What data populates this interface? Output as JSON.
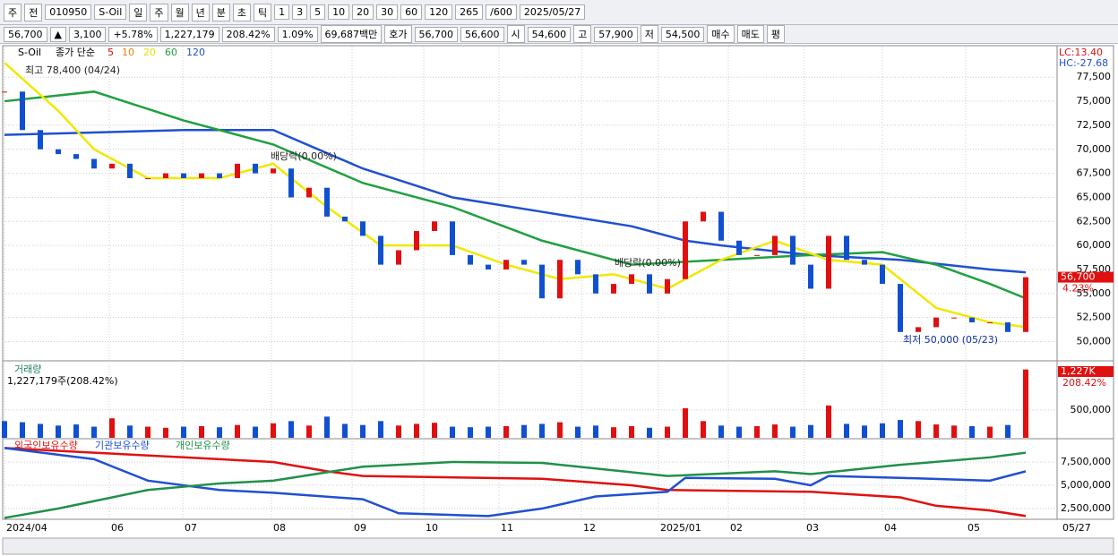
{
  "toolbar": {
    "items": [
      "주",
      "전",
      "010950",
      "S-Oil",
      "일",
      "주",
      "월",
      "년",
      "분",
      "초",
      "틱",
      "1",
      "3",
      "5",
      "10",
      "20",
      "30",
      "60",
      "120",
      "265",
      "/600",
      "2025/05/27"
    ]
  },
  "quote": {
    "items": [
      "56,700",
      "▲",
      "3,100",
      "+5.78%",
      "1,227,179",
      "208.42%",
      "1.09%",
      "69,687백만",
      "호가",
      "56,700",
      "56,600",
      "시",
      "54,600",
      "고",
      "57,900",
      "저",
      "54,500",
      "매수",
      "매도",
      "평"
    ]
  },
  "x_labels": [
    {
      "value": 0,
      "label": "2024/04"
    },
    {
      "value": 5.85,
      "label": "06"
    },
    {
      "value": 9.95,
      "label": "07"
    },
    {
      "value": 14.9,
      "label": "08"
    },
    {
      "value": 19.4,
      "label": "09"
    },
    {
      "value": 23.4,
      "label": "10"
    },
    {
      "value": 27.6,
      "label": "11"
    },
    {
      "value": 32.2,
      "label": "12"
    },
    {
      "value": 36.5,
      "label": "2025/01"
    },
    {
      "value": 40.4,
      "label": "02"
    },
    {
      "value": 44.65,
      "label": "03"
    },
    {
      "value": 49,
      "label": "04"
    },
    {
      "value": 53.65,
      "label": "05"
    }
  ],
  "x_end_label": "05/27",
  "chart_data": [
    {
      "type": "price",
      "name": "S-Oil",
      "legend_title": "종가 단순",
      "ma_legend": [
        {
          "label": "5",
          "color": "#d01010"
        },
        {
          "label": "10",
          "color": "#f08000"
        },
        {
          "label": "20",
          "color": "#e8e000"
        },
        {
          "label": "60",
          "color": "#20a040"
        },
        {
          "label": "120",
          "color": "#2050d0"
        }
      ],
      "annotations": [
        "최고 78,400 (04/24)",
        "배당락(0.00%)",
        "배당락(0.00%)",
        "최저 50,000 (05/23)"
      ],
      "right_labels": [
        "LC:13.40",
        "HC:-27.68"
      ],
      "last_label": "56,700",
      "last_change": "4.23%",
      "xlim": [
        0,
        57
      ],
      "ylim": [
        48000,
        80500
      ],
      "yticks": [
        {
          "value": 50000,
          "label": "50,000"
        },
        {
          "value": 52500,
          "label": "52,500"
        },
        {
          "value": 55000,
          "label": "55,000"
        },
        {
          "value": 57500,
          "label": "57,500"
        },
        {
          "value": 60000,
          "label": "60,000"
        },
        {
          "value": 62500,
          "label": "62,500"
        },
        {
          "value": 65000,
          "label": "65,000"
        },
        {
          "value": 67500,
          "label": "67,500"
        },
        {
          "value": 70000,
          "label": "70,000"
        },
        {
          "value": 72500,
          "label": "72,500"
        },
        {
          "value": 75000,
          "label": "75,000"
        },
        {
          "value": 77500,
          "label": "77,500"
        }
      ],
      "up_color": "#e01010",
      "down_color": "#1050d0",
      "close": [
        76000,
        72000,
        70000,
        69500,
        69000,
        68000,
        68500,
        67000,
        67000,
        67500,
        67000,
        67500,
        67000,
        68500,
        67500,
        68000,
        65000,
        66000,
        63000,
        62500,
        61000,
        58000,
        59500,
        61500,
        62500,
        59000,
        58000,
        57500,
        58500,
        58000,
        54500,
        58500,
        57000,
        55000,
        56000,
        57000,
        55000,
        56500,
        62500,
        63500,
        60500,
        59000,
        59000,
        61000,
        58000,
        55500,
        61000,
        58500,
        58000,
        56000,
        51000,
        51500,
        52500,
        52500,
        52000,
        52000,
        51000,
        56700
      ],
      "series": [
        {
          "name": "120",
          "color": "#2050d0",
          "x": [
            0,
            10,
            15,
            20,
            25,
            30,
            35,
            38,
            40,
            45,
            50,
            55,
            57
          ],
          "values": [
            71500,
            72000,
            72000,
            68000,
            65000,
            63500,
            62000,
            60500,
            60000,
            59000,
            58500,
            57500,
            57200
          ]
        },
        {
          "name": "60",
          "color": "#20a040",
          "x": [
            0,
            5,
            10,
            15,
            20,
            25,
            30,
            35,
            40,
            45,
            49,
            52,
            55,
            57
          ],
          "values": [
            75000,
            76000,
            73000,
            70500,
            66500,
            64000,
            60500,
            58000,
            58500,
            59000,
            59300,
            58000,
            56000,
            54500
          ]
        },
        {
          "name": "20",
          "color": "#f0e800",
          "x": [
            0,
            3,
            5,
            8,
            12,
            15,
            18,
            21,
            25,
            28,
            31,
            34,
            37,
            40,
            43,
            46,
            49,
            52,
            55,
            57
          ],
          "values": [
            79000,
            74000,
            70000,
            67000,
            67000,
            68500,
            64000,
            60000,
            60000,
            58000,
            56500,
            57000,
            55500,
            58500,
            60500,
            58500,
            58000,
            53500,
            52000,
            51500
          ]
        }
      ]
    },
    {
      "type": "bar",
      "title": "거래량",
      "subtitle": "1,227,179주(208.42%)",
      "last_label": "1,227K",
      "last_change": "208.42%",
      "xlim": [
        0,
        57
      ],
      "ylim": [
        0,
        1350000
      ],
      "yticks": [
        {
          "value": 500000,
          "label": "500,000"
        }
      ],
      "values": [
        300000,
        280000,
        250000,
        220000,
        240000,
        200000,
        350000,
        220000,
        200000,
        180000,
        200000,
        210000,
        190000,
        230000,
        200000,
        260000,
        300000,
        220000,
        380000,
        250000,
        230000,
        300000,
        220000,
        250000,
        270000,
        200000,
        190000,
        200000,
        210000,
        230000,
        250000,
        280000,
        200000,
        220000,
        190000,
        210000,
        180000,
        200000,
        530000,
        300000,
        220000,
        200000,
        210000,
        240000,
        200000,
        230000,
        580000,
        250000,
        220000,
        260000,
        320000,
        300000,
        240000,
        220000,
        210000,
        200000,
        230000,
        1227179
      ]
    },
    {
      "type": "line",
      "legend_position": "top-left",
      "xlim": [
        0,
        57
      ],
      "ylim": [
        1350000,
        10000000
      ],
      "yticks": [
        {
          "value": 2500000,
          "label": "2,500,000"
        },
        {
          "value": 5000000,
          "label": "5,000,000"
        },
        {
          "value": 7500000,
          "label": "7,500,000"
        }
      ],
      "series": [
        {
          "name": "외국인보유수량",
          "color": "#e01010",
          "x": [
            0,
            5,
            10,
            15,
            18,
            20,
            30,
            35,
            37,
            45,
            50,
            52,
            55,
            57
          ],
          "values": [
            9000000,
            8500000,
            8000000,
            7500000,
            6500000,
            6000000,
            5700000,
            5000000,
            4500000,
            4300000,
            3700000,
            2800000,
            2300000,
            1700000
          ]
        },
        {
          "name": "기관보유수량",
          "color": "#2050d0",
          "x": [
            0,
            5,
            8,
            12,
            15,
            20,
            22,
            27,
            30,
            33,
            37,
            38,
            43,
            45,
            46,
            50,
            55,
            57
          ],
          "values": [
            9000000,
            7800000,
            5500000,
            4500000,
            4200000,
            3500000,
            2000000,
            1700000,
            2500000,
            3800000,
            4300000,
            5800000,
            5700000,
            5000000,
            6000000,
            5800000,
            5500000,
            6500000
          ]
        },
        {
          "name": "개인보유수량",
          "color": "#20904a",
          "x": [
            0,
            3,
            8,
            12,
            15,
            20,
            25,
            30,
            37,
            43,
            45,
            50,
            55,
            57
          ],
          "values": [
            1500000,
            2500000,
            4500000,
            5200000,
            5500000,
            7000000,
            7500000,
            7400000,
            6000000,
            6500000,
            6200000,
            7200000,
            8000000,
            8500000
          ]
        }
      ]
    }
  ]
}
